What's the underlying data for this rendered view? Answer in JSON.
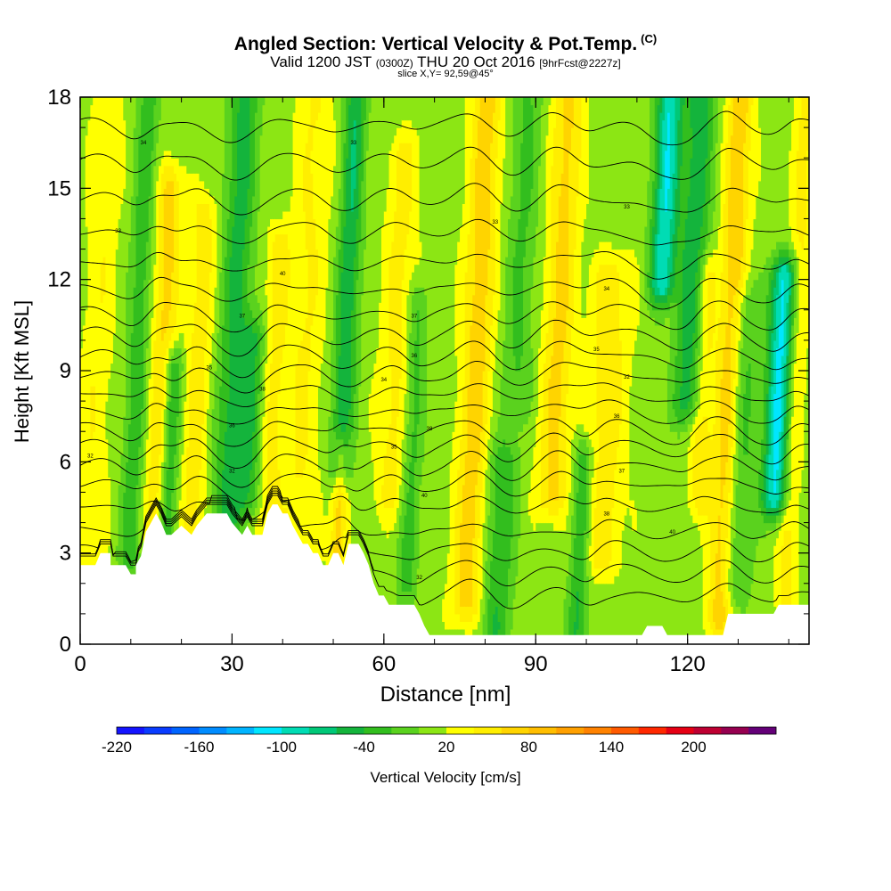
{
  "title": {
    "main": "Angled Section: Vertical Velocity & Pot.Temp.",
    "main_tag": "(C)",
    "sub_a": "Valid 1200 JST",
    "sub_b": "(0300Z)",
    "sub_c": "THU 20 Oct 2016",
    "sub_d": "[9hrFcst@2227z]",
    "slice": "slice X,Y= 92,59@45°"
  },
  "chart_data": {
    "type": "heatmap",
    "xlabel": "Distance [nm]",
    "ylabel": "Height [Kft MSL]",
    "xlim": [
      0,
      144
    ],
    "ylim": [
      0,
      18
    ],
    "x_ticks": [
      0,
      30,
      60,
      90,
      120
    ],
    "y_ticks": [
      0,
      3,
      6,
      9,
      12,
      15,
      18
    ],
    "field": "Vertical Velocity [cm/s]",
    "grid": false,
    "terrain_profile_kft": [
      [
        0,
        2.6
      ],
      [
        3,
        2.6
      ],
      [
        4,
        3.0
      ],
      [
        6,
        3.0
      ],
      [
        6,
        2.6
      ],
      [
        9,
        2.6
      ],
      [
        10,
        2.3
      ],
      [
        11,
        2.3
      ],
      [
        11,
        2.6
      ],
      [
        12,
        2.9
      ],
      [
        13,
        3.7
      ],
      [
        14,
        4.0
      ],
      [
        15,
        4.3
      ],
      [
        16,
        4.0
      ],
      [
        17,
        3.6
      ],
      [
        18,
        3.6
      ],
      [
        20,
        3.9
      ],
      [
        22,
        3.6
      ],
      [
        23,
        3.9
      ],
      [
        25,
        4.3
      ],
      [
        29,
        4.3
      ],
      [
        30,
        4.0
      ],
      [
        32,
        3.6
      ],
      [
        33,
        3.9
      ],
      [
        34,
        3.6
      ],
      [
        36,
        3.6
      ],
      [
        37,
        4.3
      ],
      [
        38,
        4.6
      ],
      [
        39,
        4.6
      ],
      [
        40,
        4.3
      ],
      [
        41,
        4.3
      ],
      [
        42,
        3.9
      ],
      [
        43,
        3.6
      ],
      [
        44,
        3.3
      ],
      [
        45,
        3.3
      ],
      [
        46,
        3.0
      ],
      [
        47,
        3.0
      ],
      [
        48,
        2.6
      ],
      [
        49,
        2.6
      ],
      [
        50,
        3.0
      ],
      [
        51,
        3.0
      ],
      [
        52,
        2.6
      ],
      [
        53,
        3.3
      ],
      [
        55,
        3.3
      ],
      [
        56,
        3.0
      ],
      [
        57,
        2.6
      ],
      [
        58,
        2.0
      ],
      [
        59,
        1.6
      ],
      [
        60,
        1.6
      ],
      [
        61,
        1.3
      ],
      [
        66,
        1.3
      ],
      [
        67,
        1.0
      ],
      [
        68,
        0.6
      ],
      [
        69,
        0.3
      ],
      [
        70,
        0.3
      ],
      [
        71,
        0.3
      ],
      [
        91,
        0.3
      ],
      [
        109,
        0.3
      ],
      [
        110,
        0.3
      ],
      [
        111,
        0.3
      ],
      [
        112,
        0.6
      ],
      [
        115,
        0.6
      ],
      [
        116,
        0.3
      ],
      [
        127,
        0.3
      ],
      [
        128,
        1.0
      ],
      [
        137,
        1.0
      ],
      [
        138,
        1.3
      ],
      [
        144,
        1.3
      ]
    ],
    "colorbar": {
      "values": [
        -220,
        -200,
        -180,
        -160,
        -140,
        -120,
        -100,
        -80,
        -60,
        -40,
        -20,
        0,
        20,
        40,
        60,
        80,
        100,
        120,
        140,
        160,
        180,
        200,
        220,
        240
      ],
      "tick_labels": [
        "-220",
        "-160",
        "-100",
        "-40",
        "20",
        "80",
        "140",
        "200"
      ],
      "colors": [
        "#1414ff",
        "#0a3cff",
        "#0064ff",
        "#008cff",
        "#00b4ff",
        "#00e6ff",
        "#00dcb4",
        "#00c878",
        "#14b43c",
        "#32be1e",
        "#5ad21e",
        "#8ce614",
        "#ffff00",
        "#ffee00",
        "#ffd400",
        "#ffbe00",
        "#ffa000",
        "#ff8200",
        "#ff5a00",
        "#ff2800",
        "#e60014",
        "#be0032",
        "#960050",
        "#640078"
      ]
    },
    "updrafts_downdrafts": [
      {
        "x": 3,
        "width": 3,
        "w": 25,
        "from": 2.5,
        "to": 18
      },
      {
        "x": 11,
        "width": 2.2,
        "w": -45,
        "from": 3,
        "to": 18
      },
      {
        "x": 16,
        "width": 2.5,
        "w": 55,
        "from": 4,
        "to": 15
      },
      {
        "x": 18,
        "width": 2,
        "w": -65,
        "from": 3.5,
        "to": 9
      },
      {
        "x": 23,
        "width": 2.5,
        "w": 40,
        "from": 4,
        "to": 14
      },
      {
        "x": 30,
        "width": 3,
        "w": -60,
        "from": 4,
        "to": 18
      },
      {
        "x": 34,
        "width": 2.5,
        "w": -50,
        "from": 5,
        "to": 10
      },
      {
        "x": 38,
        "width": 2.5,
        "w": 35,
        "from": 4,
        "to": 13
      },
      {
        "x": 44,
        "width": 3.5,
        "w": 30,
        "from": 3,
        "to": 18
      },
      {
        "x": 52,
        "width": 2.2,
        "w": -70,
        "from": 6,
        "to": 18
      },
      {
        "x": 52,
        "width": 1.5,
        "w": 60,
        "from": 3,
        "to": 6
      },
      {
        "x": 62,
        "width": 3,
        "w": 35,
        "from": 5,
        "to": 16
      },
      {
        "x": 66,
        "width": 2,
        "w": -40,
        "from": 2,
        "to": 11
      },
      {
        "x": 78,
        "width": 3,
        "w": 60,
        "from": 1.5,
        "to": 18
      },
      {
        "x": 84,
        "width": 3,
        "w": -50,
        "from": 0.5,
        "to": 6
      },
      {
        "x": 86,
        "width": 3,
        "w": -35,
        "from": 8,
        "to": 18
      },
      {
        "x": 94,
        "width": 3,
        "w": 55,
        "from": 5,
        "to": 18
      },
      {
        "x": 100,
        "width": 2,
        "w": -55,
        "from": 0.5,
        "to": 6
      },
      {
        "x": 104,
        "width": 4,
        "w": 40,
        "from": 3,
        "to": 12
      },
      {
        "x": 114,
        "width": 2.5,
        "w": -110,
        "from": 12,
        "to": 18
      },
      {
        "x": 120,
        "width": 3,
        "w": -65,
        "from": 8,
        "to": 18
      },
      {
        "x": 123,
        "width": 2,
        "w": 45,
        "from": 5,
        "to": 12
      },
      {
        "x": 128,
        "width": 2.5,
        "w": 65,
        "from": 1,
        "to": 18
      },
      {
        "x": 131,
        "width": 3,
        "w": -40,
        "from": 2,
        "to": 11
      },
      {
        "x": 138,
        "width": 2.5,
        "w": -120,
        "from": 5,
        "to": 12
      },
      {
        "x": 141,
        "width": 2,
        "w": 35,
        "from": 1.5,
        "to": 18
      }
    ],
    "isentrope_base_heights_kft": [
      1.6,
      2.3,
      3.0,
      3.7,
      4.5,
      5.2,
      5.8,
      6.4,
      7.0,
      7.6,
      8.2,
      8.8,
      9.4,
      10.1,
      10.8,
      11.6,
      12.5,
      13.5,
      14.6,
      15.8,
      17.0
    ],
    "contour_labels": [
      "32",
      "33",
      "34",
      "35",
      "36",
      "37",
      "38",
      "40"
    ]
  }
}
